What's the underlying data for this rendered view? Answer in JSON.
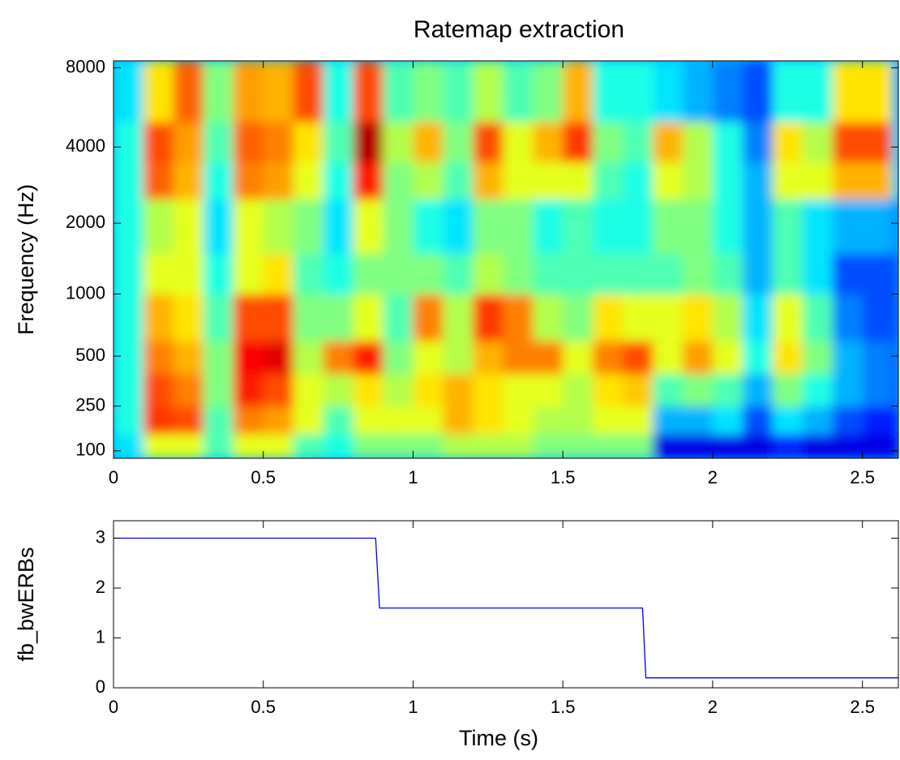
{
  "chart_data": [
    {
      "type": "heatmap",
      "title": "Ratemap extraction",
      "ylabel": "Frequency (Hz)",
      "colormap": "jet",
      "yscale": "erb",
      "xlim": [
        0,
        2.62
      ],
      "ylim": [
        80,
        8500
      ],
      "xticks": [
        0,
        0.5,
        1,
        1.5,
        2,
        2.5
      ],
      "yticks": [
        100,
        250,
        500,
        1000,
        2000,
        4000,
        8000
      ],
      "x": [
        0,
        0.1,
        0.2,
        0.3,
        0.4,
        0.5,
        0.6,
        0.7,
        0.8,
        0.9,
        1.0,
        1.1,
        1.2,
        1.3,
        1.4,
        1.5,
        1.6,
        1.7,
        1.8,
        1.9,
        2.0,
        2.1,
        2.2,
        2.3,
        2.4,
        2.5,
        2.6
      ],
      "y_edges": [
        80,
        150,
        250,
        400,
        600,
        1000,
        1500,
        2500,
        3500,
        5000,
        8500
      ],
      "z": [
        [
          0.35,
          0.4,
          0.4,
          0.4,
          0.4,
          0.4,
          0.4,
          0.4,
          0.4,
          0.35
        ],
        [
          0.6,
          0.82,
          0.8,
          0.75,
          0.7,
          0.6,
          0.55,
          0.78,
          0.8,
          0.65
        ],
        [
          0.6,
          0.8,
          0.75,
          0.7,
          0.65,
          0.6,
          0.6,
          0.7,
          0.72,
          0.78
        ],
        [
          0.45,
          0.45,
          0.5,
          0.5,
          0.45,
          0.4,
          0.35,
          0.4,
          0.45,
          0.5
        ],
        [
          0.6,
          0.75,
          0.85,
          0.88,
          0.8,
          0.6,
          0.6,
          0.75,
          0.78,
          0.72
        ],
        [
          0.6,
          0.72,
          0.8,
          0.9,
          0.8,
          0.65,
          0.55,
          0.72,
          0.75,
          0.7
        ],
        [
          0.45,
          0.6,
          0.6,
          0.55,
          0.5,
          0.45,
          0.5,
          0.6,
          0.65,
          0.8
        ],
        [
          0.4,
          0.45,
          0.55,
          0.75,
          0.5,
          0.4,
          0.35,
          0.4,
          0.45,
          0.4
        ],
        [
          0.5,
          0.6,
          0.65,
          0.85,
          0.6,
          0.5,
          0.6,
          0.85,
          0.95,
          0.8
        ],
        [
          0.5,
          0.6,
          0.55,
          0.5,
          0.45,
          0.5,
          0.5,
          0.5,
          0.55,
          0.45
        ],
        [
          0.5,
          0.6,
          0.65,
          0.6,
          0.75,
          0.5,
          0.4,
          0.55,
          0.7,
          0.5
        ],
        [
          0.55,
          0.7,
          0.7,
          0.55,
          0.55,
          0.45,
          0.35,
          0.45,
          0.5,
          0.45
        ],
        [
          0.55,
          0.65,
          0.65,
          0.7,
          0.82,
          0.55,
          0.5,
          0.7,
          0.8,
          0.55
        ],
        [
          0.55,
          0.6,
          0.6,
          0.75,
          0.75,
          0.5,
          0.5,
          0.6,
          0.6,
          0.45
        ],
        [
          0.5,
          0.55,
          0.6,
          0.75,
          0.55,
          0.45,
          0.4,
          0.6,
          0.7,
          0.5
        ],
        [
          0.5,
          0.55,
          0.55,
          0.6,
          0.5,
          0.45,
          0.45,
          0.6,
          0.82,
          0.7
        ],
        [
          0.5,
          0.6,
          0.65,
          0.75,
          0.65,
          0.45,
          0.4,
          0.45,
          0.5,
          0.4
        ],
        [
          0.5,
          0.6,
          0.68,
          0.8,
          0.6,
          0.45,
          0.4,
          0.4,
          0.45,
          0.4
        ],
        [
          0.1,
          0.3,
          0.45,
          0.6,
          0.6,
          0.45,
          0.5,
          0.6,
          0.7,
          0.35
        ],
        [
          0.1,
          0.3,
          0.5,
          0.72,
          0.65,
          0.5,
          0.5,
          0.55,
          0.55,
          0.3
        ],
        [
          0.1,
          0.35,
          0.45,
          0.6,
          0.55,
          0.45,
          0.4,
          0.4,
          0.4,
          0.25
        ],
        [
          0.1,
          0.2,
          0.3,
          0.4,
          0.35,
          0.3,
          0.3,
          0.3,
          0.25,
          0.2
        ],
        [
          0.15,
          0.35,
          0.5,
          0.65,
          0.6,
          0.45,
          0.45,
          0.6,
          0.65,
          0.4
        ],
        [
          0.1,
          0.3,
          0.4,
          0.5,
          0.45,
          0.35,
          0.35,
          0.6,
          0.55,
          0.4
        ],
        [
          0.1,
          0.2,
          0.3,
          0.3,
          0.25,
          0.2,
          0.3,
          0.7,
          0.8,
          0.65
        ],
        [
          0.1,
          0.15,
          0.25,
          0.25,
          0.2,
          0.2,
          0.3,
          0.7,
          0.8,
          0.65
        ],
        [
          0.1,
          0.15,
          0.2,
          0.2,
          0.2,
          0.2,
          0.25,
          0.35,
          0.35,
          0.3
        ]
      ]
    },
    {
      "type": "line",
      "xlabel": "Time (s)",
      "ylabel": "fb_bwERBs",
      "xlim": [
        0,
        2.62
      ],
      "ylim": [
        0,
        3.35
      ],
      "xticks": [
        0,
        0.5,
        1,
        1.5,
        2,
        2.5
      ],
      "yticks": [
        0,
        1,
        2,
        3
      ],
      "x": [
        0,
        0.875,
        0.888,
        1.766,
        1.777,
        2.62
      ],
      "series": [
        {
          "color": "#0000ff",
          "values": [
            3,
            3,
            1.6,
            1.6,
            0.2,
            0.2
          ]
        }
      ]
    }
  ]
}
